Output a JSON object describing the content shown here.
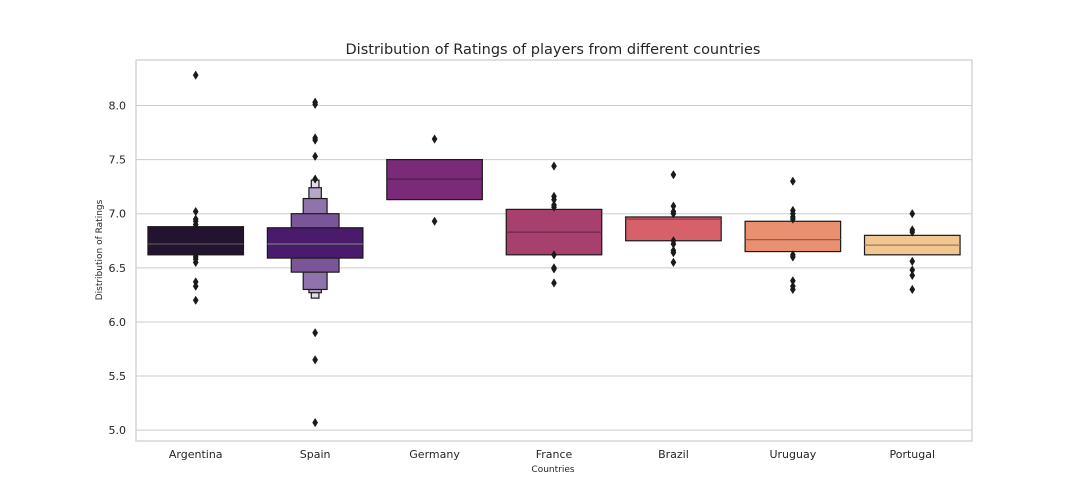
{
  "chart_data": {
    "type": "boxen",
    "title": "Distribution of Ratings of players from different countries",
    "xlabel": "Countries",
    "ylabel": "Distribution of Ratings",
    "ylim": [
      4.9,
      8.42
    ],
    "yticks": [
      5.0,
      5.5,
      6.0,
      6.5,
      7.0,
      7.5,
      8.0
    ],
    "ytick_labels": [
      "5.0",
      "5.5",
      "6.0",
      "6.5",
      "7.0",
      "7.5",
      "8.0"
    ],
    "grid": "horizontal",
    "categories": [
      "Argentina",
      "Spain",
      "Germany",
      "France",
      "Brazil",
      "Uruguay",
      "Portugal"
    ],
    "groups": [
      {
        "name": "Argentina",
        "color": "#221331",
        "median_color": "#555555",
        "median": 6.72,
        "boxes": [
          {
            "low": 6.62,
            "high": 6.88
          }
        ],
        "fliers": [
          8.28,
          7.02,
          6.95,
          6.93,
          6.9,
          6.88,
          6.62,
          6.6,
          6.58,
          6.55,
          6.37,
          6.33,
          6.2
        ]
      },
      {
        "name": "Spain",
        "color": "#4a1a6d",
        "median_color": "#777777",
        "median": 6.72,
        "boxes": [
          {
            "low": 6.59,
            "high": 6.87
          },
          {
            "low": 6.46,
            "high": 7.0
          },
          {
            "low": 6.3,
            "high": 7.14
          },
          {
            "low": 6.27,
            "high": 7.24
          },
          {
            "low": 6.22,
            "high": 7.31
          }
        ],
        "fliers": [
          8.03,
          8.01,
          7.7,
          7.68,
          7.53,
          7.32,
          5.9,
          5.65,
          5.07
        ]
      },
      {
        "name": "Germany",
        "color": "#7a2a78",
        "median_color": "#4a1846",
        "median": 7.32,
        "boxes": [
          {
            "low": 7.13,
            "high": 7.5
          }
        ],
        "fliers": [
          7.69,
          6.93
        ]
      },
      {
        "name": "France",
        "color": "#a8406e",
        "median_color": "#6a2846",
        "median": 6.83,
        "boxes": [
          {
            "low": 6.62,
            "high": 7.04
          }
        ],
        "fliers": [
          7.44,
          7.16,
          7.13,
          7.08,
          7.06,
          6.62,
          6.5,
          6.49,
          6.36
        ]
      },
      {
        "name": "Brazil",
        "color": "#d6616b",
        "median_color": "#8a3a40",
        "median": 6.95,
        "boxes": [
          {
            "low": 6.75,
            "high": 6.97
          }
        ],
        "fliers": [
          7.36,
          7.07,
          7.02,
          7.0,
          6.75,
          6.72,
          6.66,
          6.64,
          6.55
        ]
      },
      {
        "name": "Uruguay",
        "color": "#e8906f",
        "median_color": "#8a5540",
        "median": 6.76,
        "boxes": [
          {
            "low": 6.65,
            "high": 6.93
          }
        ],
        "fliers": [
          7.3,
          7.03,
          7.0,
          6.97,
          6.95,
          6.62,
          6.6,
          6.38,
          6.33,
          6.3
        ]
      },
      {
        "name": "Portugal",
        "color": "#f2c690",
        "median_color": "#9a7a55",
        "median": 6.71,
        "boxes": [
          {
            "low": 6.62,
            "high": 6.8
          }
        ],
        "fliers": [
          7.0,
          6.85,
          6.83,
          6.56,
          6.48,
          6.43,
          6.3
        ]
      }
    ]
  }
}
